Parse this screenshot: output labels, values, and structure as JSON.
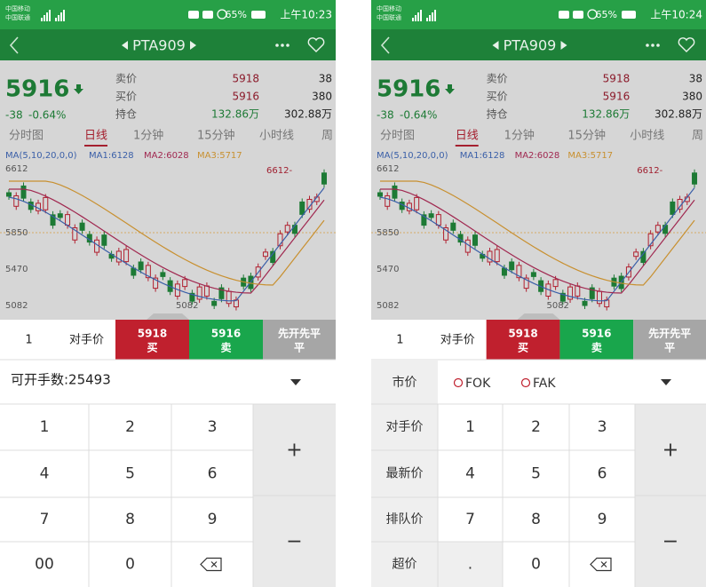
{
  "screens": [
    {
      "status": {
        "carrier_1": "中国移动",
        "carrier_2": "中国联通",
        "battery": "65%",
        "time": "上午10:23"
      },
      "header": {
        "symbol": "PTA909"
      },
      "quote": {
        "price": "5916",
        "change": "-38",
        "change_pct": "-0.64%",
        "rows": [
          [
            "卖价",
            "5918",
            "38"
          ],
          [
            "买价",
            "5916",
            "380"
          ],
          [
            "持仓",
            "132.86万",
            "302.88万"
          ]
        ]
      },
      "tabs": [
        "分时图",
        "日线",
        "1分钟",
        "15分钟",
        "小时线",
        "周"
      ],
      "indicator": [
        "MA(5,10,20,0,0)",
        "MA1:6128",
        "MA2:6028",
        "MA3:5717"
      ],
      "price_levels": [
        "6612",
        "5850",
        "5470",
        "5082"
      ],
      "annotations": [
        "6612-",
        "5082"
      ],
      "order": {
        "qty": "1",
        "price_type": "对手价",
        "buy_price": "5918",
        "buy": "买",
        "sell_price": "5916",
        "sell": "卖",
        "mode": "先开先平",
        "mode_2": "平"
      },
      "available": "可开手数:25493",
      "keys": [
        [
          "1",
          "2",
          "3"
        ],
        [
          "4",
          "5",
          "6"
        ],
        [
          "7",
          "8",
          "9"
        ],
        [
          "00",
          "0"
        ]
      ],
      "plus": "+",
      "minus": "−"
    },
    {
      "status": {
        "carrier_1": "中国移动",
        "carrier_2": "中国联通",
        "battery": "65%",
        "time": "上午10:24"
      },
      "header": {
        "symbol": "PTA909"
      },
      "quote": {
        "price": "5916",
        "change": "-38",
        "change_pct": "-0.64%",
        "rows": [
          [
            "卖价",
            "5918",
            "38"
          ],
          [
            "买价",
            "5916",
            "380"
          ],
          [
            "持仓",
            "132.86万",
            "302.88万"
          ]
        ]
      },
      "tabs": [
        "分时图",
        "日线",
        "1分钟",
        "15分钟",
        "小时线",
        "周"
      ],
      "indicator": [
        "MA(5,10,20,0,0)",
        "MA1:6128",
        "MA2:6028",
        "MA3:5717"
      ],
      "price_levels": [
        "6612",
        "5850",
        "5470",
        "5082"
      ],
      "annotations": [
        "6612-",
        "5082"
      ],
      "order": {
        "qty": "1",
        "price_type": "对手价",
        "buy_price": "5918",
        "buy": "买",
        "sell_price": "5916",
        "sell": "卖",
        "mode": "先开先平",
        "mode_2": "平"
      },
      "options": [
        "市价",
        "FOK",
        "FAK"
      ],
      "side_keys": [
        "对手价",
        "最新价",
        "排队价",
        "超价"
      ],
      "keys": [
        [
          "1",
          "2",
          "3"
        ],
        [
          "4",
          "5",
          "6"
        ],
        [
          "7",
          "8",
          "9"
        ],
        [
          ".",
          "0"
        ]
      ],
      "plus": "+",
      "minus": "−"
    }
  ]
}
